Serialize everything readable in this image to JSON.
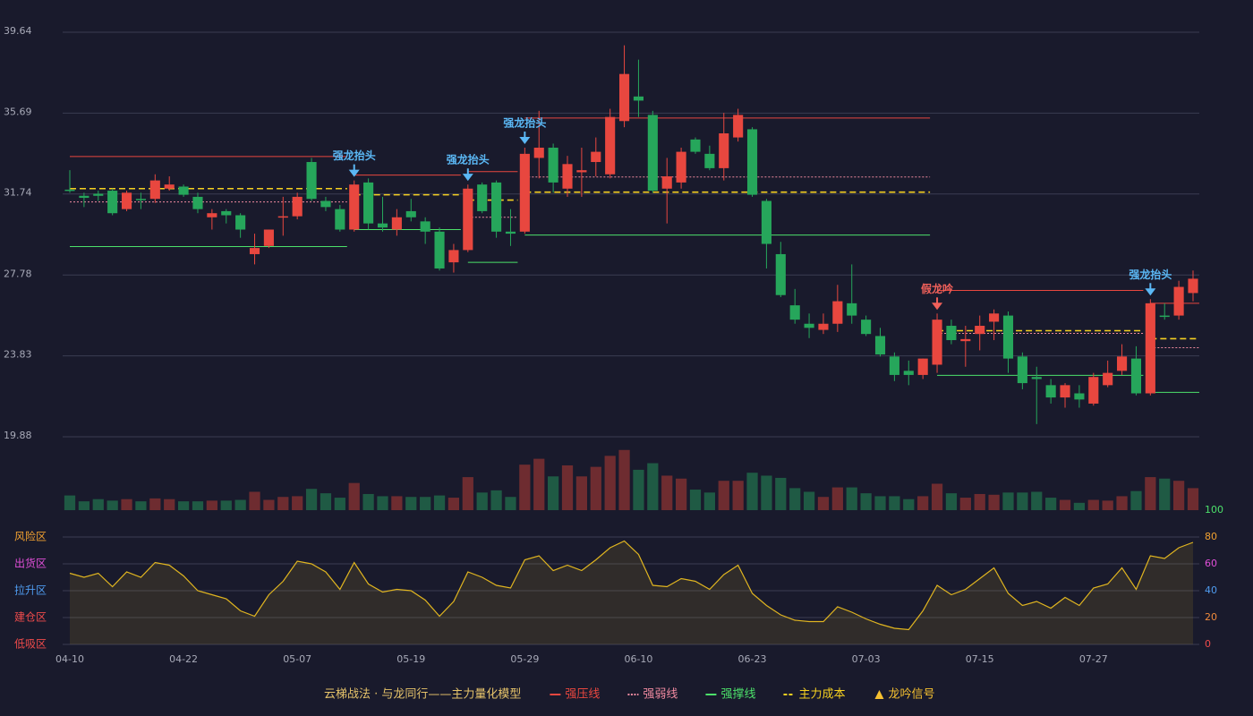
{
  "chart_data": {
    "type": "candlestick",
    "categories": [
      "04-10",
      null,
      null,
      null,
      null,
      null,
      null,
      null,
      "04-22",
      null,
      null,
      null,
      null,
      null,
      null,
      null,
      "05-07",
      null,
      null,
      null,
      null,
      null,
      null,
      null,
      "05-19",
      null,
      null,
      null,
      null,
      null,
      null,
      null,
      "05-29",
      null,
      null,
      null,
      null,
      null,
      null,
      null,
      "06-10",
      null,
      null,
      null,
      null,
      null,
      null,
      null,
      "06-23",
      null,
      null,
      null,
      null,
      null,
      null,
      null,
      "07-03",
      null,
      null,
      null,
      null,
      null,
      null,
      null,
      "07-15",
      null,
      null,
      null,
      null,
      null,
      null,
      null,
      "07-27",
      null,
      null,
      null,
      null,
      null,
      null,
      null
    ],
    "open": [
      31.95,
      31.65,
      31.75,
      31.9,
      31.0,
      31.5,
      31.5,
      32.0,
      32.1,
      31.6,
      30.6,
      30.9,
      30.7,
      28.8,
      29.2,
      30.6,
      30.65,
      33.3,
      31.4,
      31.0,
      30.0,
      32.3,
      30.3,
      30.0,
      30.9,
      30.4,
      29.9,
      28.4,
      29.0,
      32.2,
      32.3,
      29.9,
      29.9,
      33.5,
      34.0,
      32.0,
      32.8,
      33.3,
      32.7,
      35.3,
      36.5,
      35.6,
      32.0,
      32.3,
      34.4,
      33.7,
      33.0,
      34.5,
      34.9,
      31.4,
      28.8,
      26.3,
      25.4,
      25.1,
      25.4,
      26.4,
      25.6,
      24.8,
      23.8,
      23.1,
      22.9,
      23.4,
      25.3,
      24.55,
      24.9,
      25.5,
      25.8,
      23.8,
      22.8,
      22.4,
      21.8,
      22.0,
      21.5,
      22.4,
      23.1,
      23.7,
      22.0,
      25.8,
      25.8,
      26.9
    ],
    "high": [
      32.9,
      31.8,
      31.9,
      32.0,
      31.9,
      31.8,
      32.7,
      32.6,
      32.2,
      31.8,
      31.0,
      31.0,
      30.8,
      29.8,
      30.0,
      31.6,
      31.8,
      33.5,
      31.6,
      31.2,
      32.4,
      32.5,
      31.6,
      31.0,
      31.5,
      30.6,
      30.1,
      29.3,
      32.2,
      32.3,
      32.4,
      31.0,
      34.0,
      35.8,
      34.2,
      33.6,
      34.0,
      34.5,
      35.9,
      39.0,
      38.3,
      35.8,
      33.5,
      34.0,
      34.5,
      34.1,
      35.7,
      35.9,
      35.0,
      31.5,
      29.4,
      27.1,
      25.9,
      25.9,
      27.3,
      28.3,
      25.8,
      25.2,
      24.0,
      23.6,
      23.7,
      25.9,
      25.6,
      25.3,
      25.8,
      26.1,
      26.0,
      24.0,
      23.3,
      22.7,
      22.5,
      22.4,
      23.0,
      23.6,
      24.4,
      24.3,
      26.6,
      26.4,
      27.5,
      28.0
    ],
    "low": [
      31.8,
      31.1,
      31.4,
      30.7,
      30.9,
      31.0,
      31.3,
      31.9,
      31.6,
      30.8,
      30.0,
      30.3,
      29.6,
      28.3,
      29.1,
      29.7,
      30.5,
      31.4,
      30.9,
      29.9,
      29.9,
      30.0,
      29.9,
      29.7,
      30.4,
      29.3,
      28.0,
      27.9,
      28.9,
      30.8,
      29.6,
      29.2,
      29.8,
      32.5,
      31.8,
      31.6,
      31.6,
      32.6,
      32.5,
      35.0,
      35.5,
      31.8,
      30.3,
      32.0,
      33.7,
      32.9,
      32.4,
      34.3,
      31.6,
      28.1,
      26.7,
      25.4,
      24.7,
      24.9,
      25.0,
      25.4,
      24.8,
      23.8,
      22.6,
      22.4,
      22.7,
      23.0,
      24.4,
      23.3,
      24.1,
      24.6,
      23.0,
      22.2,
      20.5,
      21.5,
      21.3,
      21.3,
      21.4,
      22.3,
      22.9,
      21.9,
      21.9,
      25.6,
      25.6,
      26.5
    ],
    "close": [
      31.9,
      31.55,
      31.65,
      30.8,
      31.8,
      31.45,
      32.4,
      32.2,
      31.7,
      31.0,
      30.8,
      30.7,
      30.0,
      29.1,
      30.0,
      30.65,
      31.6,
      31.5,
      31.1,
      30.0,
      32.2,
      30.3,
      30.1,
      30.6,
      30.6,
      29.9,
      28.1,
      29.0,
      32.0,
      30.9,
      29.9,
      29.8,
      33.7,
      34.0,
      32.3,
      33.2,
      32.9,
      33.8,
      35.5,
      37.6,
      36.3,
      31.9,
      32.6,
      33.8,
      33.8,
      33.0,
      34.7,
      35.6,
      31.7,
      29.3,
      26.8,
      25.6,
      25.2,
      25.4,
      26.5,
      25.8,
      24.9,
      23.9,
      22.9,
      22.9,
      23.7,
      25.6,
      24.6,
      24.65,
      25.3,
      25.9,
      23.7,
      22.5,
      22.7,
      21.8,
      22.4,
      21.7,
      22.8,
      23.0,
      23.8,
      22.0,
      26.4,
      25.75,
      27.2,
      27.6
    ],
    "volume": [
      20,
      12,
      15,
      13,
      15,
      12,
      16,
      15,
      12,
      12,
      13,
      13,
      14,
      25,
      14,
      18,
      19,
      29,
      23,
      17,
      37,
      22,
      19,
      19,
      18,
      18,
      20,
      17,
      45,
      24,
      27,
      18,
      62,
      70,
      46,
      61,
      46,
      59,
      74,
      82,
      55,
      64,
      47,
      43,
      28,
      24,
      40,
      40,
      51,
      47,
      44,
      30,
      25,
      18,
      31,
      31,
      23,
      19,
      19,
      15,
      19,
      36,
      23,
      17,
      22,
      21,
      24,
      24,
      25,
      17,
      14,
      10,
      14,
      13,
      19,
      26,
      45,
      43,
      40,
      30
    ],
    "volume_ylim": [
      0,
      100
    ],
    "ylim": [
      19.88,
      39.64
    ],
    "yticks": [
      19.88,
      23.83,
      27.78,
      31.74,
      35.69,
      39.64
    ],
    "grid": true,
    "up_color": "#e8473f",
    "down_color": "#26a65b",
    "volume_up_color": "#6e2c30",
    "volume_down_color": "#1f5a44",
    "levels": [
      {
        "kind": "resistance",
        "value": 33.57,
        "from": 0,
        "to": 19
      },
      {
        "kind": "pivot",
        "value": 31.35,
        "from": 0,
        "to": 19
      },
      {
        "kind": "cost",
        "value": 32.0,
        "from": 0,
        "to": 19
      },
      {
        "kind": "support",
        "value": 29.17,
        "from": 0,
        "to": 19
      },
      {
        "kind": "resistance",
        "value": 32.66,
        "from": 20,
        "to": 27
      },
      {
        "kind": "cost",
        "value": 31.7,
        "from": 20,
        "to": 27
      },
      {
        "kind": "support",
        "value": 30.0,
        "from": 20,
        "to": 27
      },
      {
        "kind": "resistance",
        "value": 32.83,
        "from": 28,
        "to": 31
      },
      {
        "kind": "pivot",
        "value": 30.6,
        "from": 28,
        "to": 31
      },
      {
        "kind": "cost",
        "value": 31.44,
        "from": 28,
        "to": 31
      },
      {
        "kind": "support",
        "value": 28.4,
        "from": 28,
        "to": 31
      },
      {
        "kind": "resistance",
        "value": 35.45,
        "from": 32,
        "to": 60
      },
      {
        "kind": "pivot",
        "value": 32.57,
        "from": 32,
        "to": 60
      },
      {
        "kind": "cost",
        "value": 31.83,
        "from": 32,
        "to": 60
      },
      {
        "kind": "support",
        "value": 29.73,
        "from": 32,
        "to": 60
      },
      {
        "kind": "resistance",
        "value": 27.03,
        "from": 61,
        "to": 75
      },
      {
        "kind": "pivot",
        "value": 24.93,
        "from": 61,
        "to": 75
      },
      {
        "kind": "cost",
        "value": 25.06,
        "from": 61,
        "to": 75
      },
      {
        "kind": "support",
        "value": 22.88,
        "from": 61,
        "to": 75
      },
      {
        "kind": "resistance",
        "value": 26.4,
        "from": 76,
        "to": 79
      },
      {
        "kind": "pivot",
        "value": 24.23,
        "from": 76,
        "to": 79
      },
      {
        "kind": "cost",
        "value": 24.67,
        "from": 76,
        "to": 79
      },
      {
        "kind": "support",
        "value": 22.05,
        "from": 76,
        "to": 79
      }
    ],
    "signals": [
      {
        "index": 20,
        "label": "强龙抬头",
        "color": "#5bb8f5"
      },
      {
        "index": 28,
        "label": "强龙抬头",
        "color": "#5bb8f5"
      },
      {
        "index": 32,
        "label": "强龙抬头",
        "color": "#5bb8f5"
      },
      {
        "index": 61,
        "label": "假龙吟",
        "color": "#f0605a"
      },
      {
        "index": 76,
        "label": "强龙抬头",
        "color": "#5bb8f5"
      }
    ],
    "indicator": {
      "values": [
        53,
        50,
        53,
        43,
        54,
        50,
        61,
        59,
        51,
        40,
        37,
        34,
        25,
        21,
        37,
        47,
        62,
        60,
        54,
        41,
        61,
        45,
        39,
        41,
        40,
        33,
        21,
        32,
        54,
        50,
        44,
        42,
        63,
        66,
        55,
        59,
        55,
        63,
        72,
        77,
        67,
        44,
        43,
        49,
        47,
        41,
        52,
        59,
        38,
        29,
        22,
        18,
        17,
        17,
        28,
        24,
        19,
        15,
        12,
        11,
        25,
        44,
        37,
        41,
        49,
        57,
        38,
        29,
        32,
        27,
        35,
        29,
        42,
        45,
        57,
        41,
        66,
        64,
        72,
        76
      ],
      "color": "#e0b520",
      "ylim": [
        0,
        100
      ],
      "yticks": [
        {
          "value": 0,
          "color": "#ef4b4b"
        },
        {
          "value": 20,
          "color": "#f08a3c"
        },
        {
          "value": 40,
          "color": "#4f9cf0"
        },
        {
          "value": 60,
          "color": "#e04fd8"
        },
        {
          "value": 80,
          "color": "#f0a030"
        },
        {
          "value": 100,
          "color": "#4ce06a"
        }
      ],
      "zones": [
        {
          "value": 80,
          "label": "风险区",
          "color": "#f0a030"
        },
        {
          "value": 60,
          "label": "出货区",
          "color": "#e04fd8"
        },
        {
          "value": 40,
          "label": "拉升区",
          "color": "#4f9cf0"
        },
        {
          "value": 20,
          "label": "建仓区",
          "color": "#ef4b4b"
        },
        {
          "value": 0,
          "label": "低吸区",
          "color": "#ef4b4b"
        }
      ]
    },
    "legend": {
      "title": "云梯战法 · 与龙同行——主力量化模型",
      "color": "#e6c36a",
      "items": [
        {
          "name": "强压线",
          "kind": "resistance",
          "color": "#e8473f",
          "style": "solid"
        },
        {
          "name": "强弱线",
          "kind": "pivot",
          "color": "#f08aa0",
          "style": "dotted"
        },
        {
          "name": "强撑线",
          "kind": "support",
          "color": "#4ce06a",
          "style": "solid"
        },
        {
          "name": "主力成本",
          "kind": "cost",
          "color": "#f5d020",
          "style": "dashed"
        },
        {
          "name": "龙吟信号",
          "kind": "signal",
          "color": "#f5c030",
          "style": "triangle"
        }
      ]
    }
  }
}
